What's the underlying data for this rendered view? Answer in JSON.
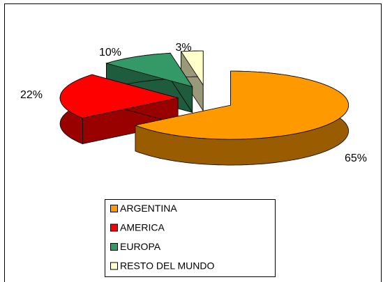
{
  "chart_data": {
    "type": "pie",
    "categories": [
      "ARGENTINA",
      "AMERICA",
      "EUROPA",
      "RESTO DEL MUNDO"
    ],
    "values": [
      65,
      22,
      10,
      3
    ],
    "value_labels": [
      "65%",
      "22%",
      "10%",
      "3%"
    ],
    "colors": [
      "#ff9900",
      "#ff0000",
      "#339966",
      "#ffffcc"
    ],
    "legend": "bottom"
  }
}
